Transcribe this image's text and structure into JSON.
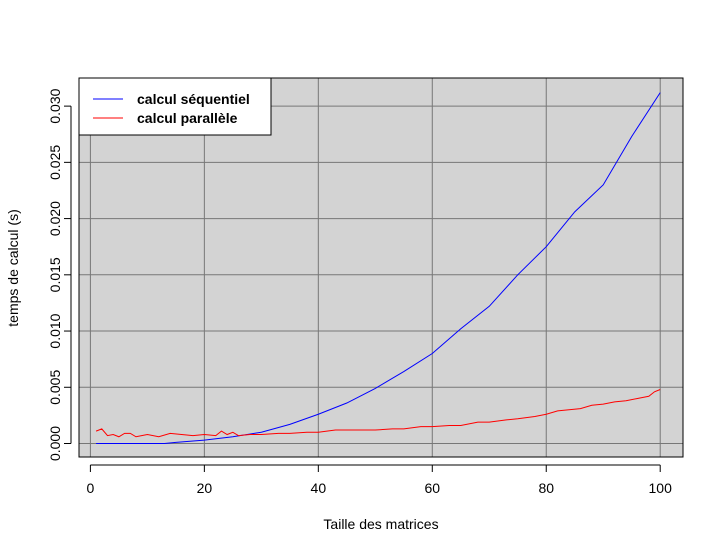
{
  "chart_data": {
    "type": "line",
    "title": "",
    "xlabel": "Taille des matrices",
    "ylabel": "temps de calcul (s)",
    "xlim": [
      -2,
      104
    ],
    "ylim": [
      -0.0012,
      0.0325
    ],
    "x_ticks": [
      0,
      20,
      40,
      60,
      80,
      100
    ],
    "x_tick_labels": [
      "0",
      "20",
      "40",
      "60",
      "80",
      "100"
    ],
    "y_ticks": [
      0.0,
      0.005,
      0.01,
      0.015,
      0.02,
      0.025,
      0.03
    ],
    "y_tick_labels": [
      "0.000",
      "0.005",
      "0.010",
      "0.015",
      "0.020",
      "0.025",
      "0.030"
    ],
    "grid": true,
    "background": "#d3d3d3",
    "grid_color": "#777777",
    "legend_position": "top-left",
    "series": [
      {
        "name": "calcul séquentiel",
        "color": "#0000ff",
        "x": [
          1,
          5,
          10,
          13,
          15,
          20,
          25,
          30,
          35,
          40,
          45,
          50,
          55,
          60,
          65,
          70,
          75,
          80,
          85,
          90,
          95,
          100
        ],
        "values": [
          0,
          0,
          0,
          0,
          0.0001,
          0.0003,
          0.0006,
          0.001,
          0.0017,
          0.0026,
          0.0036,
          0.0049,
          0.0064,
          0.008,
          0.0102,
          0.0122,
          0.015,
          0.0175,
          0.0206,
          0.023,
          0.0273,
          0.0312
        ]
      },
      {
        "name": "calcul parallèle",
        "color": "#ff0000",
        "x": [
          1,
          2,
          3,
          4,
          5,
          6,
          7,
          8,
          9,
          10,
          12,
          14,
          16,
          18,
          20,
          22,
          23,
          24,
          25,
          26,
          28,
          30,
          33,
          35,
          38,
          40,
          43,
          45,
          48,
          50,
          53,
          55,
          58,
          60,
          63,
          65,
          68,
          70,
          73,
          75,
          78,
          80,
          82,
          84,
          86,
          88,
          90,
          92,
          94,
          96,
          98,
          99,
          100
        ],
        "values": [
          0.0011,
          0.0013,
          0.0007,
          0.0008,
          0.0006,
          0.0009,
          0.0009,
          0.0006,
          0.0007,
          0.0008,
          0.0006,
          0.0009,
          0.0008,
          0.0007,
          0.0008,
          0.0007,
          0.0011,
          0.0008,
          0.001,
          0.0007,
          0.0008,
          0.0008,
          0.0009,
          0.0009,
          0.001,
          0.001,
          0.0012,
          0.0012,
          0.0012,
          0.0012,
          0.0013,
          0.0013,
          0.0015,
          0.0015,
          0.0016,
          0.0016,
          0.0019,
          0.0019,
          0.0021,
          0.0022,
          0.0024,
          0.0026,
          0.0029,
          0.003,
          0.0031,
          0.0034,
          0.0035,
          0.0037,
          0.0038,
          0.004,
          0.0042,
          0.0046,
          0.0048
        ]
      }
    ]
  }
}
